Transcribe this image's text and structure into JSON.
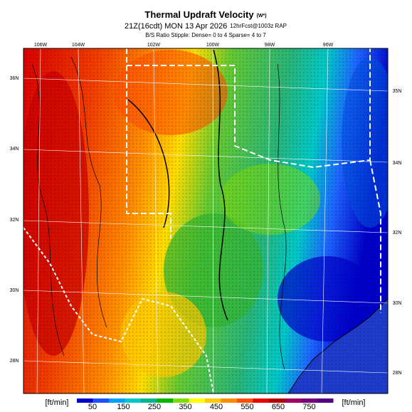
{
  "header": {
    "title": "Thermal Updraft Velocity",
    "title_note": "(W*)",
    "run": "21Z(16cdt) MON 13 Apr 2026",
    "forecast": "12hrFcst@1003z RAP",
    "stipple": "B/S Ratio Stipple: Dense= 0 to 4 Sparse= 4 to 7"
  },
  "map": {
    "lon_labels": [
      "106W",
      "104W",
      "102W",
      "100W",
      "98W",
      "96W"
    ],
    "lat_labels_left": [
      "36N",
      "34N",
      "32N",
      "30N",
      "28N"
    ],
    "lat_labels_right": [
      "35N",
      "34N",
      "32N",
      "30N",
      "28N"
    ]
  },
  "colorbar": {
    "unit_left": "[ft/min]",
    "unit_right": "[ft/min]",
    "ticks": [
      50,
      150,
      250,
      350,
      450,
      550,
      650,
      750
    ]
  }
}
